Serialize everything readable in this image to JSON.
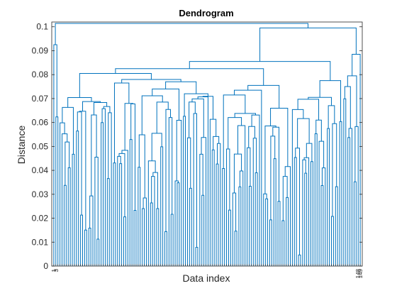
{
  "chart_data": {
    "type": "dendrogram",
    "title": "Dendrogram",
    "xlabel": "Data index",
    "ylabel": "Distance",
    "ylim": [
      0,
      0.102
    ],
    "yticks": [
      0,
      0.01,
      0.02,
      0.03,
      0.04,
      0.05,
      0.06,
      0.07,
      0.08,
      0.09,
      0.1
    ],
    "ytick_labels": [
      "0",
      "0.01",
      "0.02",
      "0.03",
      "0.04",
      "0.05",
      "0.06",
      "0.07",
      "0.08",
      "0.09",
      "0.1"
    ],
    "leaf_count": 150,
    "leaf_labels_legible": [
      "1",
      "3",
      "148",
      "149"
    ],
    "grid": false,
    "box": true,
    "colors": {
      "branch": "#0072bd",
      "axis": "#262626"
    },
    "merge_heights_sample": [
      0.1014,
      0.0995,
      0.0925,
      0.0885,
      0.0855,
      0.0825,
      0.0805,
      0.0795,
      0.078,
      0.0775,
      0.077,
      0.0765,
      0.0755,
      0.075,
      0.074,
      0.0735,
      0.072,
      0.0715,
      0.0705,
      0.0695,
      0.0685,
      0.0675,
      0.0665,
      0.065,
      0.064,
      0.062,
      0.0595,
      0.0565,
      0.054,
      0.0525,
      0.0505,
      0.049,
      0.0465,
      0.0445,
      0.043,
      0.0405,
      0.0385,
      0.0365,
      0.0345,
      0.0325,
      0.03,
      0.0275,
      0.025,
      0.022,
      0.0195,
      0.017,
      0.0145,
      0.012,
      0.0095,
      0.007,
      0.005
    ]
  }
}
